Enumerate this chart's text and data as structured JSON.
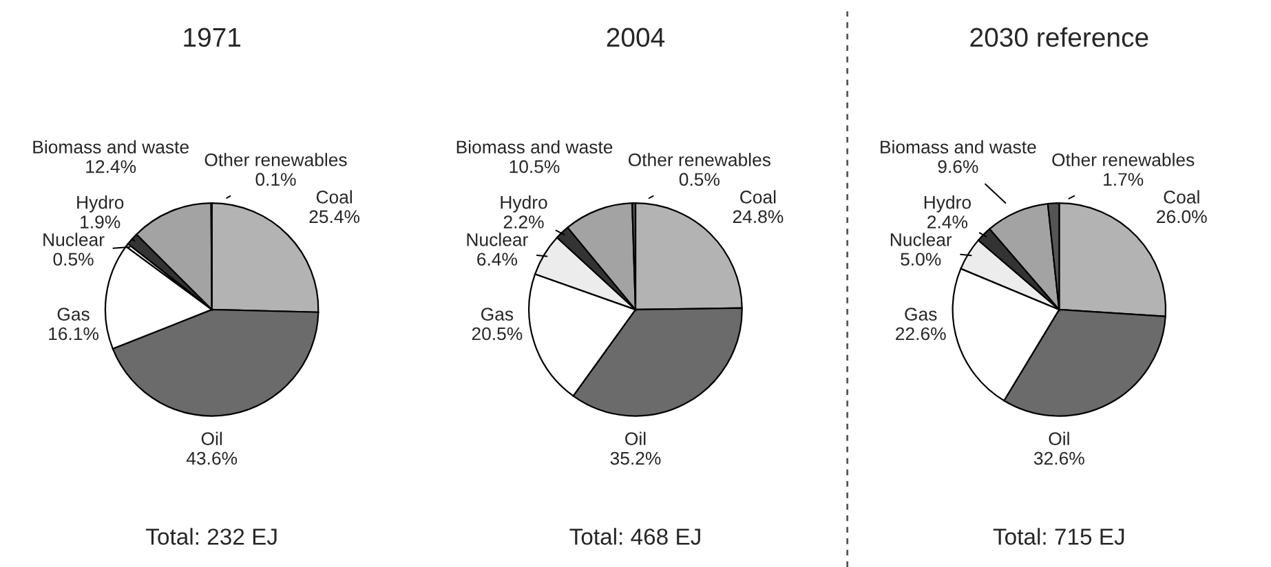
{
  "chart_data": [
    {
      "type": "pie",
      "title": "1971",
      "categories": [
        "Coal",
        "Oil",
        "Gas",
        "Nuclear",
        "Hydro",
        "Biomass and waste",
        "Other renewables"
      ],
      "values": [
        25.4,
        43.6,
        16.1,
        0.5,
        1.9,
        12.4,
        0.1
      ],
      "value_labels": [
        "25.4%",
        "43.6%",
        "16.1%",
        "0.5%",
        "1.9%",
        "12.4%",
        "0.1%"
      ],
      "colors": [
        "#b3b3b3",
        "#6b6b6b",
        "#ffffff",
        "#ececec",
        "#333333",
        "#a3a3a3",
        "#555555"
      ],
      "annotations": [
        "Total: 232 EJ"
      ]
    },
    {
      "type": "pie",
      "title": "2004",
      "categories": [
        "Coal",
        "Oil",
        "Gas",
        "Nuclear",
        "Hydro",
        "Biomass and waste",
        "Other renewables"
      ],
      "values": [
        24.8,
        35.2,
        20.5,
        6.4,
        2.2,
        10.5,
        0.5
      ],
      "value_labels": [
        "24.8%",
        "35.2%",
        "20.5%",
        "6.4%",
        "2.2%",
        "10.5%",
        "0.5%"
      ],
      "colors": [
        "#b3b3b3",
        "#6b6b6b",
        "#ffffff",
        "#ececec",
        "#333333",
        "#a3a3a3",
        "#555555"
      ],
      "annotations": [
        "Total: 468 EJ"
      ]
    },
    {
      "type": "pie",
      "title": "2030 reference",
      "categories": [
        "Coal",
        "Oil",
        "Gas",
        "Nuclear",
        "Hydro",
        "Biomass and waste",
        "Other renewables"
      ],
      "values": [
        26.0,
        32.6,
        22.6,
        5.0,
        2.4,
        9.6,
        1.7
      ],
      "value_labels": [
        "26.0%",
        "32.6%",
        "22.6%",
        "5.0%",
        "2.4%",
        "9.6%",
        "1.7%"
      ],
      "colors": [
        "#b3b3b3",
        "#6b6b6b",
        "#ffffff",
        "#ececec",
        "#333333",
        "#a3a3a3",
        "#555555"
      ],
      "annotations": [
        "Total: 715 EJ"
      ]
    }
  ]
}
